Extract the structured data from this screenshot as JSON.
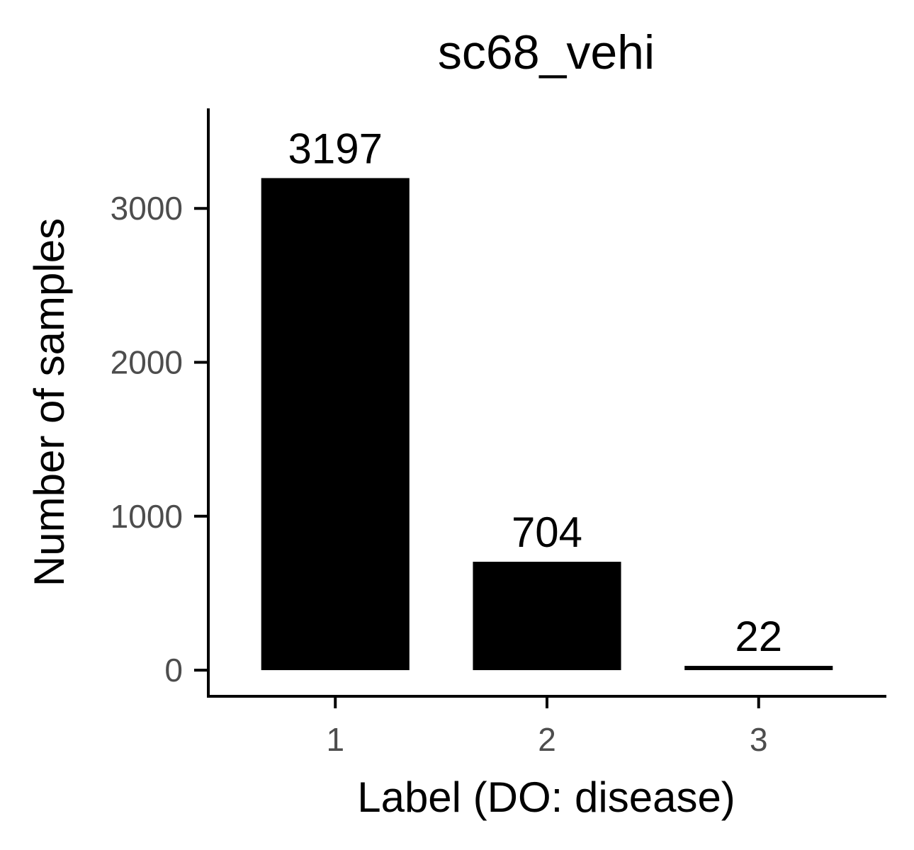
{
  "chart_data": {
    "type": "bar",
    "title": "sc68_vehi",
    "xlabel": "Label (DO: disease)",
    "ylabel": "Number of samples",
    "categories": [
      "1",
      "2",
      "3"
    ],
    "values": [
      3197,
      704,
      22
    ],
    "data_labels": [
      "3197",
      "704",
      "22"
    ],
    "yticks": [
      0,
      1000,
      2000,
      3000
    ],
    "ytick_labels": [
      "0",
      "1000",
      "2000",
      "3000"
    ],
    "ylim": [
      -170,
      3650
    ],
    "grid": false,
    "legend": "none",
    "bar_color": "#000000",
    "axis_color": "#000000"
  }
}
